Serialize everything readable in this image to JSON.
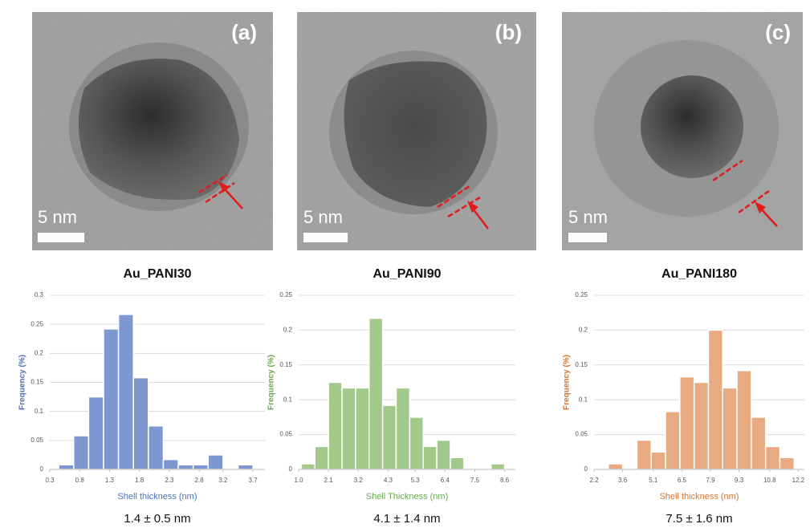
{
  "panels": [
    {
      "label": "(a)",
      "scale": "5 nm"
    },
    {
      "label": "(b)",
      "scale": "5 nm"
    },
    {
      "label": "(c)",
      "scale": "5 nm"
    }
  ],
  "chart_data": [
    {
      "type": "histogram",
      "title": "Au_PANI30",
      "x_label": "Shell thickness (nm)",
      "y_label": "Frequency (%)",
      "annotation": "1.4 ± 0.5 nm",
      "color": "#7d98d0",
      "axis_color": "#4a72c0",
      "bins": [
        0.45,
        0.7,
        0.95,
        1.2,
        1.45,
        1.7,
        1.95,
        2.2,
        2.45,
        2.7,
        2.95,
        3.2,
        3.45,
        3.7
      ],
      "values": [
        0.008,
        0.058,
        0.125,
        0.242,
        0.267,
        0.158,
        0.075,
        0.017,
        0.008,
        0.008,
        0.025,
        0,
        0.008
      ],
      "xlim": [
        0.3,
        3.9
      ],
      "ylim": [
        0,
        0.3
      ],
      "xticks": [
        0.3,
        0.8,
        1.3,
        1.8,
        2.3,
        2.8,
        3.2,
        3.7
      ],
      "yticks": [
        0,
        0.05,
        0.1,
        0.15,
        0.2,
        0.25,
        0.3
      ],
      "grid": true
    },
    {
      "type": "histogram",
      "title": "Au_PANI90",
      "x_label": "Shell Thickness (nm)",
      "y_label": "Frequency (%)",
      "annotation": "4.1 ± 1.4 nm",
      "color": "#a2c98a",
      "axis_color": "#6aa84f",
      "bins": [
        1.1,
        1.6,
        2.1,
        2.6,
        3.1,
        3.6,
        4.1,
        4.6,
        5.1,
        5.6,
        6.1,
        6.6,
        7.1,
        7.6,
        8.1,
        8.6
      ],
      "values": [
        0.008,
        0.033,
        0.125,
        0.117,
        0.117,
        0.217,
        0.092,
        0.117,
        0.075,
        0.033,
        0.042,
        0.017,
        0,
        0,
        0.008
      ],
      "xlim": [
        1.0,
        9.0
      ],
      "ylim": [
        0,
        0.25
      ],
      "xticks": [
        {
          "value": 1.0,
          "label": "1.0"
        },
        2.1,
        3.2,
        4.3,
        5.3,
        6.4,
        7.5,
        8.6
      ],
      "yticks": [
        0,
        0.05,
        0.1,
        0.15,
        0.2,
        0.25
      ],
      "grid": true
    },
    {
      "type": "histogram",
      "title": "Au_PANI180",
      "x_label": "Shell thickness (nm)",
      "y_label": "Frequency (%)",
      "annotation": "7.5 ± 1.6 nm",
      "color": "#e8aa80",
      "axis_color": "#d9732c",
      "bins": [
        2.9,
        3.6,
        4.3,
        5.0,
        5.7,
        6.4,
        7.1,
        7.8,
        8.5,
        9.2,
        9.9,
        10.6,
        11.3,
        12.0
      ],
      "values": [
        0.008,
        0,
        0.042,
        0.025,
        0.083,
        0.133,
        0.125,
        0.2,
        0.117,
        0.142,
        0.075,
        0.033,
        0.017
      ],
      "xlim": [
        2.2,
        12.5
      ],
      "ylim": [
        0,
        0.25
      ],
      "xticks": [
        2.2,
        3.6,
        5.1,
        6.5,
        7.9,
        9.3,
        10.8,
        12.2
      ],
      "yticks": [
        0,
        0.05,
        0.1,
        0.15,
        0.2,
        0.25
      ],
      "grid": true
    }
  ]
}
